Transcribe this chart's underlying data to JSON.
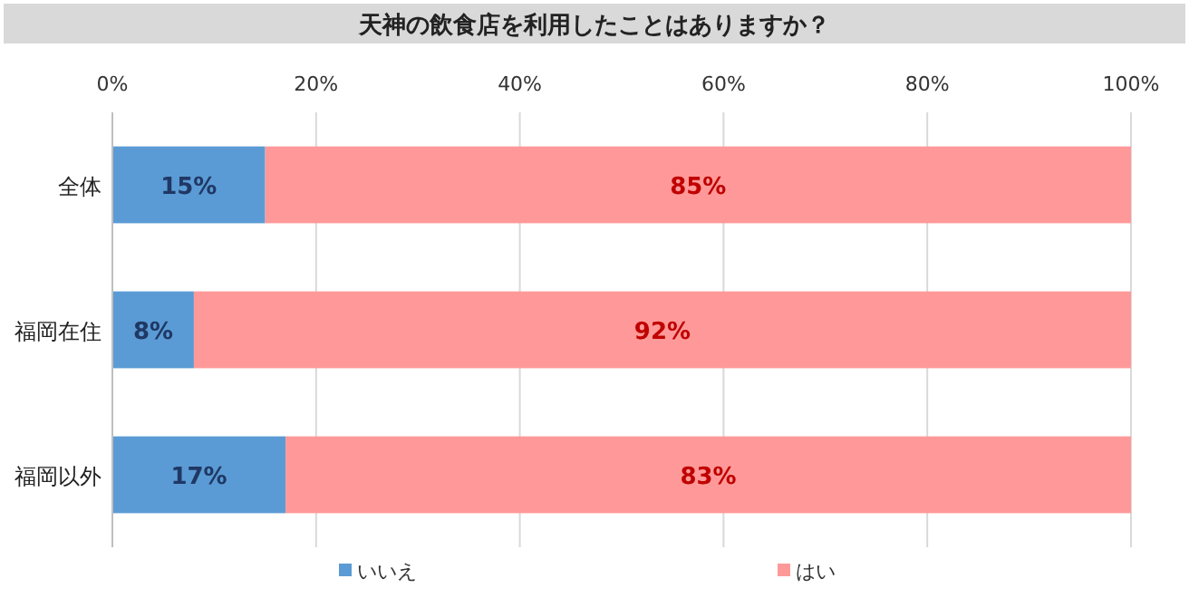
{
  "chart_data": {
    "type": "bar",
    "orientation": "horizontal",
    "stacked": true,
    "title": "天神の飲食店を利用したことはありますか？",
    "categories": [
      "全体",
      "福岡在住",
      "福岡以外"
    ],
    "series": [
      {
        "name": "いいえ",
        "color": "#5b9bd5",
        "values": [
          15,
          8,
          17
        ],
        "value_labels": [
          "15%",
          "8%",
          "17%"
        ]
      },
      {
        "name": "はい",
        "color": "#ff9999",
        "values": [
          85,
          92,
          83
        ],
        "value_labels": [
          "85%",
          "92%",
          "83%"
        ]
      }
    ],
    "xlim": [
      0,
      100
    ],
    "xticks": [
      {
        "value": 0,
        "label": "0%"
      },
      {
        "value": 20,
        "label": "20%"
      },
      {
        "value": 40,
        "label": "40%"
      },
      {
        "value": 60,
        "label": "60%"
      },
      {
        "value": 80,
        "label": "80%"
      },
      {
        "value": 100,
        "label": "100%"
      }
    ],
    "grid": "x",
    "legend": "bottom"
  }
}
